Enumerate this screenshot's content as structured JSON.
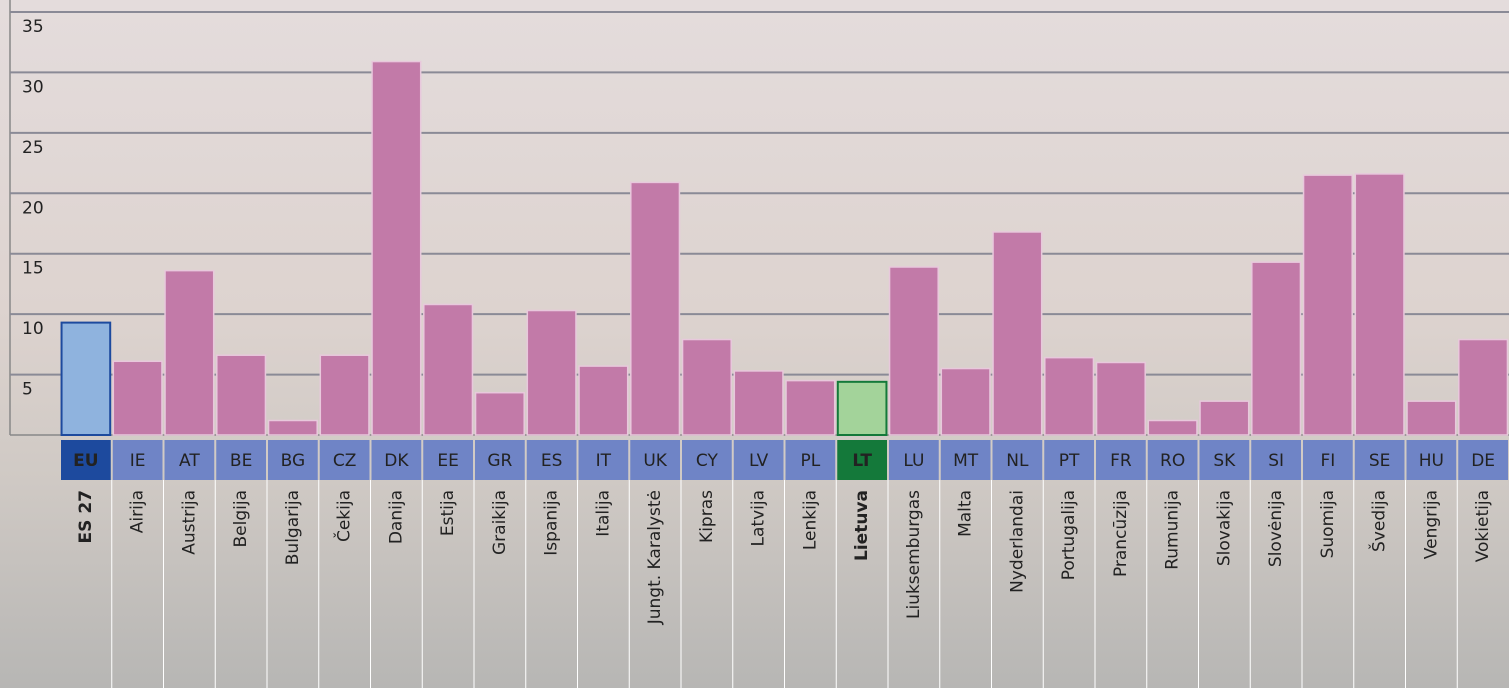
{
  "chart_data": {
    "type": "bar",
    "codes": [
      "EU",
      "IE",
      "AT",
      "BE",
      "BG",
      "CZ",
      "DK",
      "EE",
      "GR",
      "ES",
      "IT",
      "UK",
      "CY",
      "LV",
      "PL",
      "LT",
      "LU",
      "MT",
      "NL",
      "PT",
      "FR",
      "RO",
      "SK",
      "SI",
      "FI",
      "SE",
      "HU",
      "DE"
    ],
    "categories": [
      "ES 27",
      "Airija",
      "Austrija",
      "Belgija",
      "Bulgarija",
      "Čekija",
      "Danija",
      "Estija",
      "Graikija",
      "Ispanija",
      "Italija",
      "Jungt. Karalystė",
      "Kipras",
      "Latvija",
      "Lenkija",
      "Lietuva",
      "Liuksemburgas",
      "Malta",
      "Nyderlandai",
      "Portugalija",
      "Prancūzija",
      "Rumunija",
      "Slovakija",
      "Slovėnija",
      "Suomija",
      "Švedija",
      "Vengrija",
      "Vokietija"
    ],
    "values": [
      9.3,
      6.1,
      13.6,
      6.6,
      1.2,
      6.6,
      30.9,
      10.8,
      3.5,
      10.3,
      5.7,
      20.9,
      7.9,
      5.3,
      4.5,
      4.4,
      13.9,
      5.5,
      16.8,
      6.4,
      6.0,
      1.2,
      2.8,
      14.3,
      21.5,
      21.6,
      2.8,
      7.9
    ],
    "colors": [
      "#8fb3de",
      "#c27aa8",
      "#c27aa8",
      "#c27aa8",
      "#c27aa8",
      "#c27aa8",
      "#c27aa8",
      "#c27aa8",
      "#c27aa8",
      "#c27aa8",
      "#c27aa8",
      "#c27aa8",
      "#c27aa8",
      "#c27aa8",
      "#c27aa8",
      "#a3d39a",
      "#c27aa8",
      "#c27aa8",
      "#c27aa8",
      "#c27aa8",
      "#c27aa8",
      "#c27aa8",
      "#c27aa8",
      "#c27aa8",
      "#c27aa8",
      "#c27aa8",
      "#c27aa8",
      "#c27aa8"
    ],
    "code_colors": [
      "#1d4a9e",
      "#6f84c6",
      "#6f84c6",
      "#6f84c6",
      "#6f84c6",
      "#6f84c6",
      "#6f84c6",
      "#6f84c6",
      "#6f84c6",
      "#6f84c6",
      "#6f84c6",
      "#6f84c6",
      "#6f84c6",
      "#6f84c6",
      "#6f84c6",
      "#14793a",
      "#6f84c6",
      "#6f84c6",
      "#6f84c6",
      "#6f84c6",
      "#6f84c6",
      "#6f84c6",
      "#6f84c6",
      "#6f84c6",
      "#6f84c6",
      "#6f84c6",
      "#6f84c6",
      "#6f84c6"
    ],
    "emphasis": [
      true,
      false,
      false,
      false,
      false,
      false,
      false,
      false,
      false,
      false,
      false,
      false,
      false,
      false,
      false,
      true,
      false,
      false,
      false,
      false,
      false,
      false,
      false,
      false,
      false,
      false,
      false,
      false
    ],
    "ylim": [
      0,
      35
    ],
    "yticks": [
      5,
      10,
      15,
      20,
      25,
      30,
      35
    ],
    "grid": true
  }
}
